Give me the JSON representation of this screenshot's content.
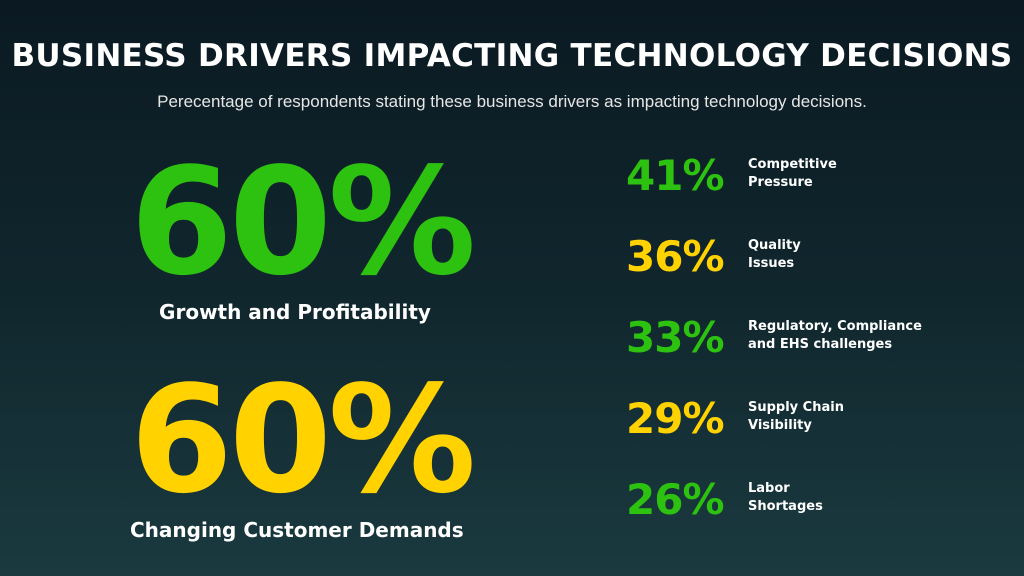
{
  "header": {
    "title": "BUSINESS DRIVERS IMPACTING TECHNOLOGY DECISIONS",
    "subtitle": "Perecentage of respondents stating these business drivers as impacting technology decisions."
  },
  "colors": {
    "green": "#2cc20f",
    "yellow": "#ffd200",
    "background": "#10262d",
    "text": "#ffffff"
  },
  "chart_data": {
    "type": "table",
    "title": "BUSINESS DRIVERS IMPACTING TECHNOLOGY DECISIONS",
    "subtitle": "Perecentage of respondents stating these business drivers as impacting technology decisions.",
    "unit": "%",
    "highlights": [
      {
        "label": "Growth and Profitability",
        "value": 60,
        "display": "60%",
        "color": "#2cc20f"
      },
      {
        "label": "Changing Customer Demands",
        "value": 60,
        "display": "60%",
        "color": "#ffd200"
      }
    ],
    "items": [
      {
        "label": "Competitive\nPressure",
        "value": 41,
        "display": "41%",
        "color": "#2cc20f"
      },
      {
        "label": "Quality\nIssues",
        "value": 36,
        "display": "36%",
        "color": "#ffd200"
      },
      {
        "label": "Regulatory, Compliance\nand EHS challenges",
        "value": 33,
        "display": "33%",
        "color": "#2cc20f"
      },
      {
        "label": "Supply Chain\nVisibility",
        "value": 29,
        "display": "29%",
        "color": "#ffd200"
      },
      {
        "label": "Labor\nShortages",
        "value": 26,
        "display": "26%",
        "color": "#2cc20f"
      }
    ]
  }
}
